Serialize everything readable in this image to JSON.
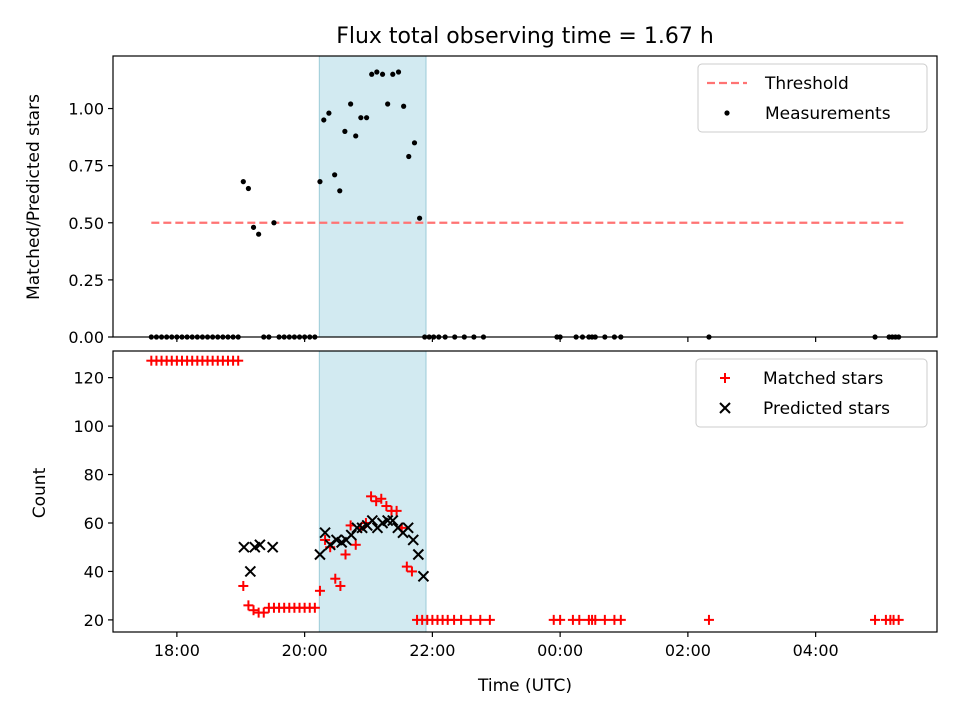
{
  "chart_data": [
    {
      "type": "scatter",
      "title": "Flux total observing time = 1.67 h",
      "ylabel": "Matched/Predicted stars",
      "xlabel": "",
      "ylim": [
        0,
        1.23
      ],
      "yticks": [
        0.0,
        0.25,
        0.5,
        0.75,
        1.0
      ],
      "ytick_labels": [
        "0.00",
        "0.25",
        "0.50",
        "0.75",
        "1.00"
      ],
      "xlim": [
        17.0,
        29.9
      ],
      "xticks": [
        18,
        20,
        22,
        24,
        26,
        28
      ],
      "xtick_labels": [
        "",
        "",
        "",
        "",
        "",
        ""
      ],
      "shaded_span": {
        "x0": 20.23,
        "x1": 21.9,
        "color": "#add8e6"
      },
      "legend": {
        "position": "top-right",
        "entries": [
          "Threshold",
          "Measurements"
        ]
      },
      "threshold": {
        "name": "Threshold",
        "x0": 17.6,
        "x1": 29.4,
        "y": 0.5,
        "color": "#ff7373"
      },
      "series": [
        {
          "name": "Measurements",
          "color": "#000000",
          "x": [
            17.6,
            17.68,
            17.76,
            17.84,
            17.92,
            18.0,
            18.08,
            18.16,
            18.24,
            18.32,
            18.4,
            18.48,
            18.56,
            18.64,
            18.72,
            18.8,
            18.88,
            18.96,
            19.04,
            19.12,
            19.2,
            19.28,
            19.36,
            19.44,
            19.52,
            19.6,
            19.68,
            19.76,
            19.84,
            19.92,
            20.0,
            20.08,
            20.16,
            20.24,
            20.3,
            20.38,
            20.47,
            20.55,
            20.63,
            20.72,
            20.8,
            20.88,
            20.97,
            21.05,
            21.13,
            21.22,
            21.3,
            21.38,
            21.47,
            21.55,
            21.63,
            21.72,
            21.8,
            21.88,
            21.95,
            22.02,
            22.1,
            22.2,
            22.35,
            22.5,
            22.65,
            22.8,
            23.95,
            24.0,
            24.25,
            24.35,
            24.45,
            24.5,
            24.55,
            24.7,
            24.85,
            24.95,
            26.33,
            28.93,
            29.15,
            29.2,
            29.25,
            29.3
          ],
          "y": [
            0,
            0,
            0,
            0,
            0,
            0,
            0,
            0,
            0,
            0,
            0,
            0,
            0,
            0,
            0,
            0,
            0,
            0,
            0.68,
            0.65,
            0.48,
            0.45,
            0,
            0,
            0.5,
            0,
            0,
            0,
            0,
            0,
            0,
            0,
            0,
            0.68,
            0.95,
            0.98,
            0.71,
            0.64,
            0.9,
            1.02,
            0.88,
            0.96,
            0.96,
            1.15,
            1.16,
            1.15,
            1.02,
            1.15,
            1.16,
            1.01,
            0.79,
            0.85,
            0.52,
            0,
            0,
            0,
            0,
            0,
            0,
            0,
            0,
            0,
            0,
            0,
            0,
            0,
            0,
            0,
            0,
            0,
            0,
            0,
            0,
            0,
            0,
            0,
            0,
            0
          ]
        }
      ]
    },
    {
      "type": "scatter",
      "title": "",
      "ylabel": "Count",
      "xlabel": "Time (UTC)",
      "ylim": [
        15,
        131
      ],
      "yticks": [
        20,
        40,
        60,
        80,
        100,
        120
      ],
      "ytick_labels": [
        "20",
        "40",
        "60",
        "80",
        "100",
        "120"
      ],
      "xlim": [
        17.0,
        29.9
      ],
      "xticks": [
        18,
        20,
        22,
        24,
        26,
        28
      ],
      "xtick_labels": [
        "18:00",
        "20:00",
        "22:00",
        "00:00",
        "02:00",
        "04:00"
      ],
      "shaded_span": {
        "x0": 20.23,
        "x1": 21.9,
        "color": "#add8e6"
      },
      "legend": {
        "position": "top-right",
        "entries": [
          "Matched stars",
          "Predicted stars"
        ]
      },
      "series": [
        {
          "name": "Matched stars",
          "marker": "plus",
          "color": "#ff0000",
          "x": [
            17.6,
            17.68,
            17.76,
            17.84,
            17.92,
            18.0,
            18.08,
            18.16,
            18.24,
            18.32,
            18.4,
            18.48,
            18.56,
            18.64,
            18.72,
            18.8,
            18.88,
            18.96,
            19.04,
            19.12,
            19.2,
            19.28,
            19.36,
            19.44,
            19.52,
            19.6,
            19.68,
            19.76,
            19.84,
            19.92,
            20.0,
            20.08,
            20.16,
            20.24,
            20.32,
            20.4,
            20.48,
            20.56,
            20.64,
            20.72,
            20.8,
            20.88,
            20.96,
            21.04,
            21.12,
            21.2,
            21.28,
            21.36,
            21.44,
            21.52,
            21.6,
            21.68,
            21.76,
            21.84,
            21.92,
            22.0,
            22.08,
            22.16,
            22.24,
            22.34,
            22.45,
            22.6,
            22.75,
            22.9,
            23.9,
            24.0,
            24.2,
            24.3,
            24.45,
            24.5,
            24.55,
            24.7,
            24.85,
            24.95,
            26.33,
            28.93,
            29.1,
            29.17,
            29.22,
            29.3
          ],
          "y": [
            127,
            127,
            127,
            127,
            127,
            127,
            127,
            127,
            127,
            127,
            127,
            127,
            127,
            127,
            127,
            127,
            127,
            127,
            34,
            26,
            24,
            23,
            23,
            25,
            25,
            25,
            25,
            25,
            25,
            25,
            25,
            25,
            25,
            32,
            53,
            50,
            37,
            34,
            47,
            59,
            51,
            58,
            60,
            71,
            69,
            70,
            67,
            65,
            65,
            58,
            42,
            40,
            20,
            20,
            20,
            20,
            20,
            20,
            20,
            20,
            20,
            20,
            20,
            20,
            20,
            20,
            20,
            20,
            20,
            20,
            20,
            20,
            20,
            20,
            20,
            20,
            20,
            20,
            20,
            20
          ]
        },
        {
          "name": "Predicted stars",
          "marker": "x",
          "color": "#000000",
          "x": [
            19.05,
            19.15,
            19.22,
            19.3,
            19.5,
            20.24,
            20.32,
            20.4,
            20.5,
            20.58,
            20.65,
            20.73,
            20.82,
            20.9,
            20.98,
            21.06,
            21.14,
            21.22,
            21.3,
            21.38,
            21.46,
            21.54,
            21.62,
            21.7,
            21.78,
            21.86
          ],
          "y": [
            50,
            40,
            50,
            51,
            50,
            47,
            56,
            51,
            53,
            52,
            53,
            55,
            58,
            58,
            59,
            61,
            58,
            60,
            61,
            61,
            58,
            56,
            58,
            53,
            47,
            38
          ]
        }
      ]
    }
  ]
}
